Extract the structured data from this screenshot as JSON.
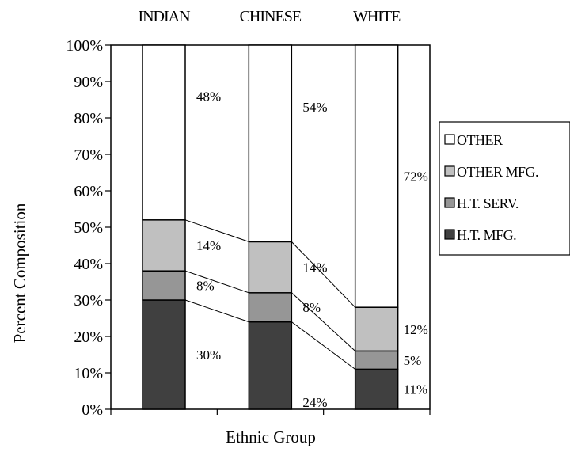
{
  "chart_data": {
    "type": "bar",
    "stacked": true,
    "categories": [
      "INDIAN",
      "CHINESE",
      "WHITE"
    ],
    "series": [
      {
        "name": "H.T. MFG.",
        "values": [
          30,
          24,
          11
        ],
        "color": "#404040"
      },
      {
        "name": "H.T. SERV.",
        "values": [
          8,
          8,
          5
        ],
        "color": "#969696"
      },
      {
        "name": "OTHER MFG.",
        "values": [
          14,
          14,
          12
        ],
        "color": "#c0c0c0"
      },
      {
        "name": "OTHER",
        "values": [
          48,
          54,
          72
        ],
        "color": "#ffffff"
      }
    ],
    "data_labels": [
      [
        "30%",
        "24%",
        "11%"
      ],
      [
        "8%",
        "8%",
        "5%"
      ],
      [
        "14%",
        "14%",
        "12%"
      ],
      [
        "48%",
        "54%",
        "72%"
      ]
    ],
    "xlabel": "Ethnic Group",
    "ylabel": "Percent Composition",
    "ylim": [
      0,
      100
    ],
    "yticks": [
      "0%",
      "10%",
      "20%",
      "30%",
      "40%",
      "50%",
      "60%",
      "70%",
      "80%",
      "90%",
      "100%"
    ],
    "legend": {
      "position": "right",
      "entries": [
        "OTHER",
        "OTHER MFG.",
        "H.T. SERV.",
        "H.T. MFG."
      ]
    },
    "series_lines": true,
    "grid": false
  }
}
